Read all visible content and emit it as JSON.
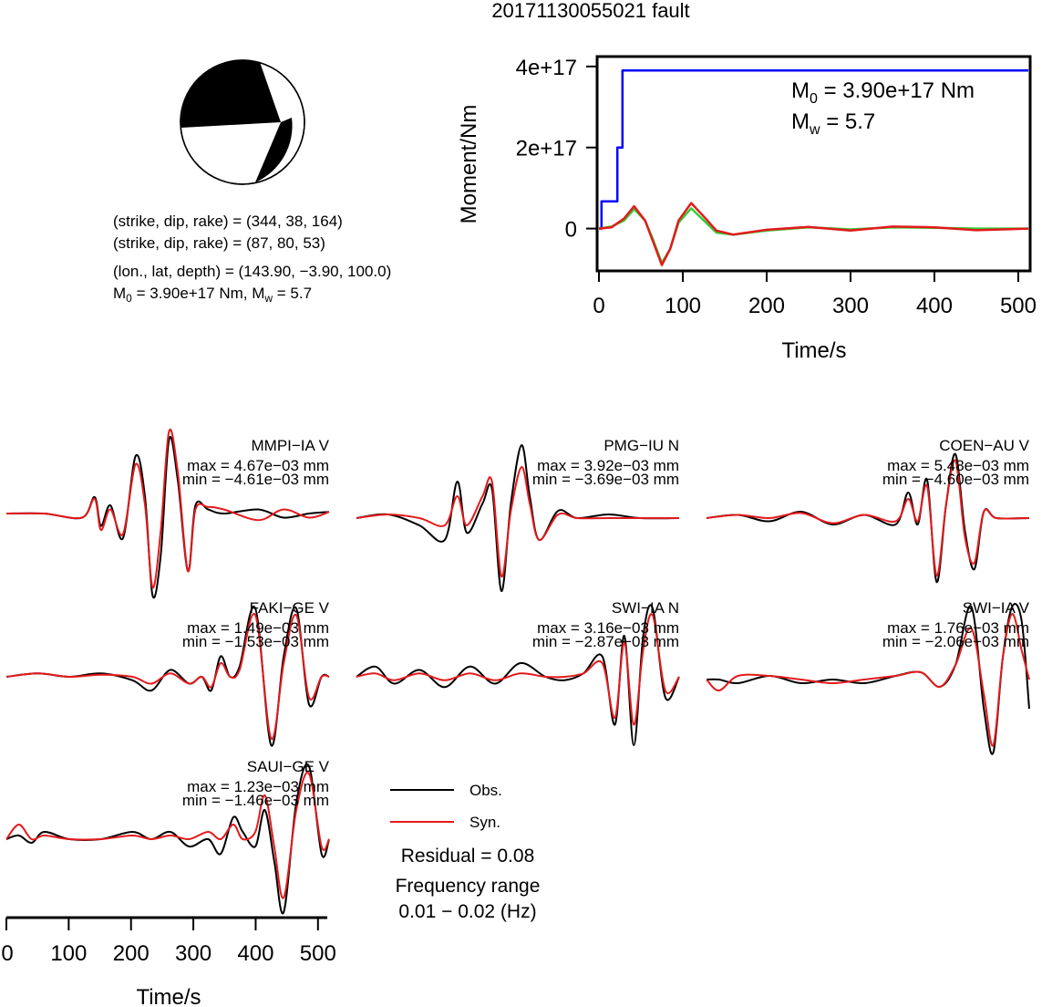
{
  "title": "20171130055021 fault",
  "mechanism": {
    "plane1": "(strike, dip, rake) = (344, 38, 164)",
    "plane2": "(strike, dip, rake) = (87, 80, 53)",
    "location": "(lon., lat, depth) = (143.90, −3.90, 100.0)",
    "moment_line": {
      "m0_label": "M",
      "m0_sub": "0",
      "m0_value": " = 3.90e+17 Nm, M",
      "mw_sub": "w",
      "mw_value": " = 5.7"
    }
  },
  "moment_panel": {
    "ylabel": "Moment/Nm",
    "xlabel": "Time/s",
    "y_ticks": [
      "4e+17",
      "2e+17",
      "0"
    ],
    "x_ticks": [
      "0",
      "100",
      "200",
      "300",
      "400",
      "500"
    ],
    "annot_m0": {
      "main": "M",
      "sub": "0",
      "rest": " = 3.90e+17 Nm"
    },
    "annot_mw": {
      "main": "M",
      "sub": "w",
      "rest": " = 5.7"
    }
  },
  "legend": {
    "obs": "Obs.",
    "syn": "Syn.",
    "residual": "Residual = 0.08",
    "freq_title": "Frequency range",
    "freq_value": "0.01 − 0.02 (Hz)"
  },
  "waveform_axis": {
    "xlabel": "Time/s",
    "x_ticks": [
      "0",
      "100",
      "200",
      "300",
      "400",
      "500"
    ]
  },
  "stations": [
    {
      "name": "MMPI−IA V",
      "max": "max = 4.67e−03 mm",
      "min": "min = −4.61e−03 mm"
    },
    {
      "name": "PMG−IU N",
      "max": "max = 3.92e−03 mm",
      "min": "min = −3.69e−03 mm"
    },
    {
      "name": "COEN−AU V",
      "max": "max = 5.48e−03 mm",
      "min": "min = −4.60e−03 mm"
    },
    {
      "name": "FAKI−GE V",
      "max": "max = 1.49e−03 mm",
      "min": "min = −1.53e−03 mm"
    },
    {
      "name": "SWI−IA N",
      "max": "max = 3.16e−03 mm",
      "min": "min = −2.87e−03 mm"
    },
    {
      "name": "SWI−IA V",
      "max": "max = 1.76e−03 mm",
      "min": "min = −2.06e−03 mm"
    },
    {
      "name": "SAUI−GE V",
      "max": "max = 1.23e−03 mm",
      "min": "min = −1.46e−03 mm"
    }
  ],
  "colors": {
    "obs": "#000000",
    "syn": "#e31a1c",
    "moment": "#0000ff",
    "source_time_red": "#e31a1c",
    "source_time_green": "#33cc33"
  },
  "chart_data": [
    {
      "type": "line",
      "title": "",
      "xlabel": "Time/s",
      "ylabel": "Moment/Nm",
      "xlim": [
        0,
        512
      ],
      "ylim": [
        -1e+17,
        4.2e+17
      ],
      "series": [
        {
          "name": "",
          "color": "#0000ff",
          "x": [
            0,
            3,
            3,
            22,
            22,
            28,
            28,
            512
          ],
          "y": [
            0,
            0,
            6.7e+16,
            6.7e+16,
            2e+17,
            2e+17,
            3.9e+17,
            3.9e+17
          ]
        },
        {
          "name": "",
          "color": "#33cc33",
          "x": [
            0,
            15,
            30,
            42,
            55,
            65,
            75,
            85,
            95,
            110,
            125,
            140,
            160,
            200,
            250,
            300,
            350,
            400,
            450,
            512
          ],
          "y": [
            0,
            5000000000000000.0,
            2e+16,
            4.8e+16,
            2e+16,
            -3e+16,
            -8.5e+16,
            -5e+16,
            1.5e+16,
            5e+16,
            2e+16,
            -1e+16,
            -1.5e+16,
            -5000000000000000.0,
            3000000000000000.0,
            -2000000000000000.0,
            3000000000000000.0,
            2000000000000000.0,
            0,
            0
          ]
        },
        {
          "name": "",
          "color": "#e31a1c",
          "x": [
            0,
            15,
            30,
            42,
            55,
            65,
            75,
            85,
            95,
            110,
            125,
            140,
            160,
            200,
            250,
            300,
            350,
            400,
            450,
            512
          ],
          "y": [
            0,
            3000000000000000.0,
            2.5e+16,
            5.5e+16,
            2e+16,
            -3.5e+16,
            -9e+16,
            -5e+16,
            2e+16,
            6.3e+16,
            3e+16,
            -5000000000000000.0,
            -1.5e+16,
            -3000000000000000.0,
            4000000000000000.0,
            -5000000000000000.0,
            5000000000000000.0,
            3000000000000000.0,
            -4000000000000000.0,
            0
          ]
        }
      ]
    },
    {
      "type": "line",
      "title": "",
      "xlabel": "Time/s",
      "ylabel": "",
      "xlim": [
        0,
        512
      ],
      "note_traces": "normalized displacement waveforms; values are relative amplitudes in [-1, 1]",
      "panels": [
        {
          "station": "MMPI−IA V",
          "x": [
            0,
            60,
            120,
            140,
            150,
            165,
            185,
            205,
            220,
            232,
            245,
            258,
            272,
            288,
            300,
            320,
            345,
            400,
            440,
            480,
            512
          ],
          "obs": [
            0,
            0,
            -0.05,
            0.2,
            -0.15,
            0.1,
            -0.3,
            0.7,
            0.2,
            -1.0,
            -0.5,
            0.9,
            0.4,
            -0.7,
            0.1,
            0.05,
            0,
            0.05,
            -0.05,
            0,
            0.02
          ],
          "syn": [
            0,
            0,
            -0.05,
            0.18,
            -0.2,
            0.05,
            -0.25,
            0.6,
            0.1,
            -0.9,
            -0.2,
            1.0,
            0.5,
            -0.7,
            0.05,
            0.08,
            0.05,
            -0.08,
            0.05,
            -0.05,
            0.02
          ]
        },
        {
          "station": "PMG−IU N",
          "x": [
            0,
            50,
            100,
            140,
            160,
            175,
            200,
            215,
            230,
            245,
            262,
            275,
            290,
            320,
            350,
            400,
            450,
            512
          ],
          "obs": [
            0,
            0.05,
            -0.1,
            -0.3,
            0.5,
            -0.2,
            0.2,
            0.4,
            -1.0,
            0.2,
            1.0,
            0.3,
            -0.3,
            0.1,
            0.0,
            0.05,
            0.0,
            0.0
          ],
          "syn": [
            0,
            0.05,
            0.0,
            -0.1,
            0.3,
            -0.1,
            0.3,
            0.5,
            -0.8,
            0.1,
            0.7,
            0.2,
            -0.3,
            0.05,
            0.0,
            0.0,
            0.0,
            0.0
          ]
        },
        {
          "station": "COEN−AU V",
          "x": [
            0,
            50,
            100,
            150,
            200,
            250,
            300,
            320,
            335,
            350,
            365,
            380,
            395,
            410,
            425,
            440,
            460,
            512
          ],
          "obs": [
            0,
            0.05,
            -0.05,
            0.1,
            -0.1,
            0.05,
            -0.1,
            0.4,
            -0.1,
            0.6,
            -1.0,
            0.2,
            1.0,
            -0.2,
            -0.8,
            0.1,
            0.0,
            0.0
          ],
          "syn": [
            0,
            0.05,
            0.0,
            0.08,
            -0.08,
            0.05,
            -0.05,
            0.3,
            -0.05,
            0.5,
            -0.9,
            0.2,
            0.9,
            -0.3,
            -0.7,
            0.1,
            0.0,
            0.0
          ]
        },
        {
          "station": "FAKI−GE V",
          "x": [
            0,
            50,
            100,
            150,
            200,
            230,
            260,
            290,
            310,
            325,
            340,
            355,
            370,
            395,
            420,
            440,
            460,
            480,
            500,
            512
          ],
          "obs": [
            0,
            0.05,
            0.0,
            0.05,
            -0.05,
            -0.2,
            0.1,
            -0.1,
            0.0,
            -0.2,
            0.3,
            0.0,
            0.15,
            1.0,
            -1.0,
            0.3,
            1.0,
            -0.4,
            0.0,
            0.0
          ],
          "syn": [
            0,
            0.05,
            0.0,
            0.03,
            0.0,
            -0.1,
            0.05,
            -0.1,
            0.0,
            -0.15,
            0.2,
            0.0,
            0.1,
            0.9,
            -0.9,
            0.2,
            0.9,
            -0.3,
            0.0,
            0.0
          ]
        },
        {
          "station": "SWI−IA N",
          "x": [
            0,
            30,
            60,
            100,
            140,
            180,
            220,
            260,
            300,
            330,
            360,
            390,
            410,
            425,
            440,
            455,
            470,
            490,
            512
          ],
          "obs": [
            0,
            0.15,
            -0.1,
            0.1,
            -0.15,
            0.15,
            -0.1,
            0.2,
            0.0,
            -0.05,
            0.05,
            0.3,
            -0.7,
            0.6,
            -1.0,
            0.6,
            1.0,
            -0.3,
            0.0
          ],
          "syn": [
            0,
            0.05,
            -0.05,
            0.05,
            -0.05,
            0.05,
            -0.05,
            0.05,
            0.0,
            0.0,
            0.05,
            0.2,
            -0.6,
            0.5,
            -0.7,
            0.4,
            0.9,
            -0.2,
            0.0
          ],
          "draw_note": "approximate"
        },
        {
          "station": "SWI−IA V",
          "x": [
            0,
            20,
            50,
            100,
            150,
            200,
            250,
            300,
            340,
            370,
            395,
            420,
            440,
            455,
            470,
            485,
            500,
            512
          ],
          "obs": [
            0,
            0.0,
            -0.05,
            0.05,
            -0.05,
            0.0,
            -0.05,
            0.05,
            0.1,
            -0.1,
            0.2,
            1.0,
            -0.4,
            -1.0,
            0.3,
            1.0,
            0.8,
            -0.4
          ],
          "syn": [
            0,
            -0.15,
            0.05,
            0.05,
            0.0,
            -0.05,
            0.0,
            0.05,
            0.1,
            -0.1,
            0.2,
            0.7,
            -0.2,
            -0.9,
            0.3,
            0.9,
            0.4,
            0.0
          ]
        },
        {
          "station": "SAUI−GE V",
          "x": [
            0,
            20,
            40,
            60,
            100,
            150,
            200,
            230,
            260,
            290,
            320,
            340,
            360,
            375,
            395,
            410,
            425,
            440,
            460,
            480,
            500,
            512
          ],
          "obs": [
            0,
            0.05,
            -0.05,
            0.1,
            0.0,
            0.0,
            0.1,
            0.0,
            0.1,
            -0.1,
            0.0,
            -0.2,
            0.3,
            0.1,
            -0.1,
            0.4,
            -0.3,
            -1.0,
            0.5,
            1.0,
            -0.2,
            0.0
          ],
          "syn": [
            0,
            0.2,
            0.0,
            0.05,
            0.0,
            0.0,
            0.05,
            0.0,
            0.05,
            0.0,
            0.1,
            0.0,
            0.2,
            0.0,
            0.1,
            0.6,
            -0.1,
            -0.8,
            0.4,
            0.9,
            -0.1,
            0.0
          ]
        }
      ]
    }
  ]
}
